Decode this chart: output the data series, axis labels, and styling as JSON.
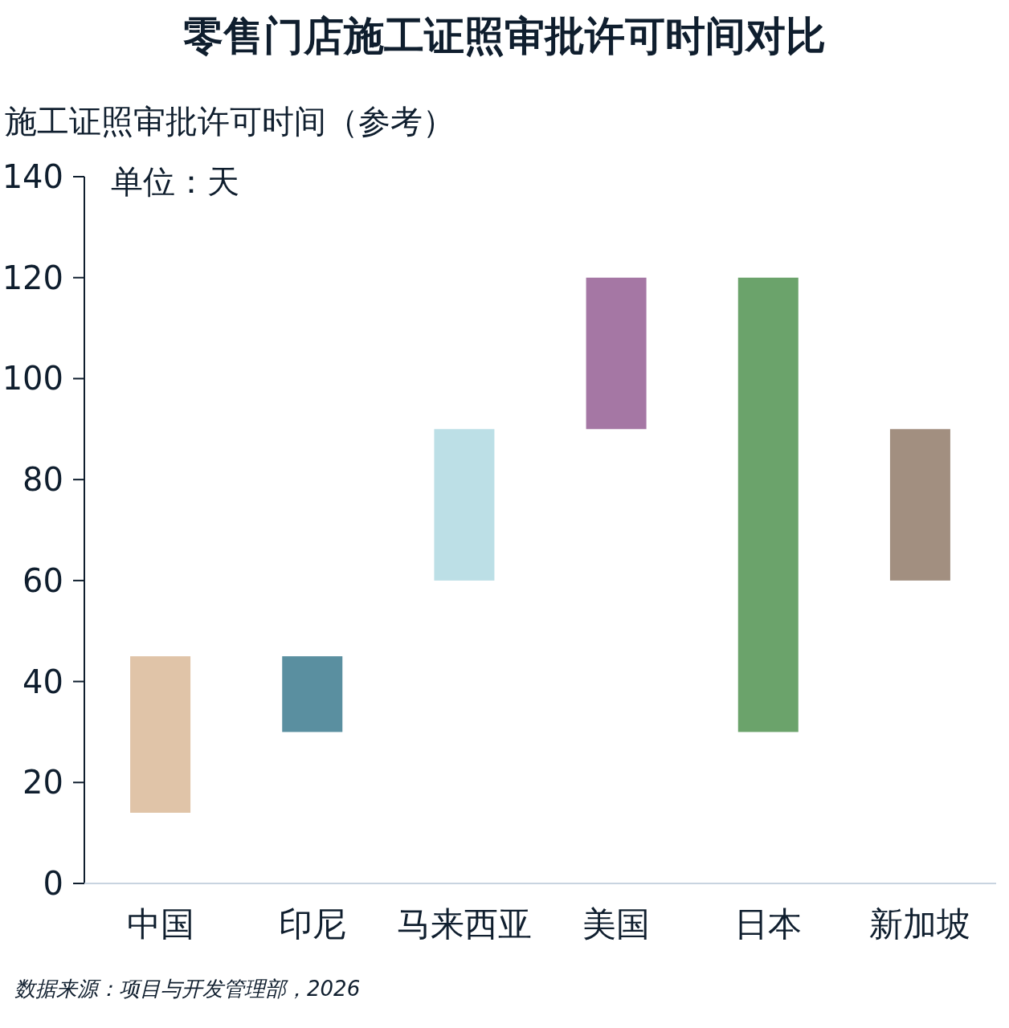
{
  "chart_data": {
    "type": "bar",
    "title": "零售门店施工证照审批许可时间对比",
    "ylabel": "施工证照审批许可时间（参考）",
    "categories": [
      "中国",
      "印尼",
      "马来西亚",
      "美国",
      "日本",
      "新加坡"
    ],
    "base": [
      14,
      30,
      60,
      90,
      30,
      60
    ],
    "values": [
      31,
      15,
      30,
      30,
      90,
      30
    ],
    "colors": [
      "#e0c4a8",
      "#5a8fa0",
      "#bcdfe6",
      "#a577a4",
      "#6ba36b",
      "#a28f80"
    ],
    "ylim": [
      0,
      140
    ],
    "yticks": [
      0,
      20,
      40,
      60,
      80,
      100,
      120,
      140
    ],
    "annotations": [
      "单位：天",
      "数据来源：项目与开发管理部，2026"
    ]
  }
}
